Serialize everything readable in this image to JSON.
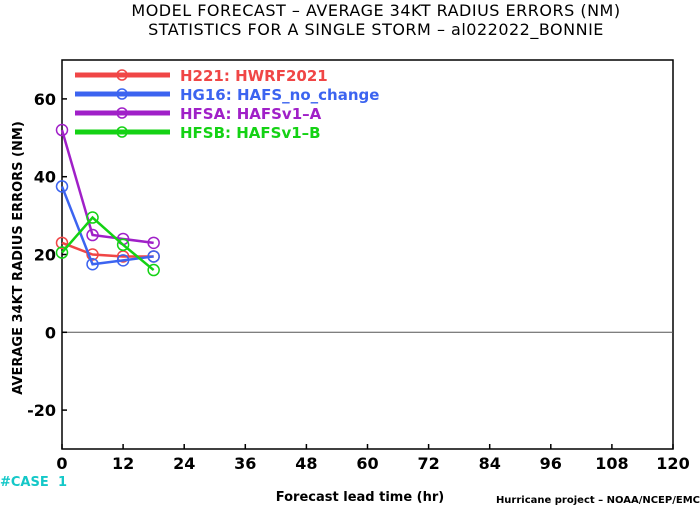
{
  "chart_data": {
    "type": "line",
    "title": "MODEL FORECAST – AVERAGE 34KT RADIUS ERRORS (NM)",
    "subtitle": "STATISTICS FOR A SINGLE STORM – al022022_BONNIE",
    "xlabel": "Forecast lead time (hr)",
    "ylabel": "AVERAGE 34KT RADIUS ERRORS (NM)",
    "xlim": [
      0,
      120
    ],
    "ylim": [
      -30,
      70
    ],
    "x_ticks": [
      "0",
      "12",
      "24",
      "36",
      "48",
      "60",
      "72",
      "84",
      "96",
      "108",
      "120"
    ],
    "y_ticks": [
      "-20",
      "0",
      "20",
      "40",
      "60"
    ],
    "grid": false,
    "legend_position": "top-left",
    "zero_line": true,
    "series": [
      {
        "name": "H221: HWRF2021",
        "color": "#f04646",
        "x": [
          0,
          6,
          12,
          18
        ],
        "y": [
          23,
          20,
          19.5,
          19.5
        ]
      },
      {
        "name": "HG16: HAFS_no_change",
        "color": "#3c64f0",
        "x": [
          0,
          6,
          12,
          18
        ],
        "y": [
          37.5,
          17.5,
          18.5,
          19.5
        ]
      },
      {
        "name": "HFSA: HAFSv1–A",
        "color": "#a020c8",
        "x": [
          0,
          6,
          12,
          18
        ],
        "y": [
          52,
          25,
          24,
          23
        ]
      },
      {
        "name": "HFSB: HAFSv1–B",
        "color": "#14d214",
        "x": [
          0,
          6,
          12,
          18
        ],
        "y": [
          20.5,
          29.5,
          22.5,
          16
        ]
      }
    ]
  },
  "footer": {
    "case_label": "#CASE",
    "case_count": "1",
    "case_color": "#14c8c8",
    "credit": "Hurricane project – NOAA/NCEP/EMC"
  }
}
